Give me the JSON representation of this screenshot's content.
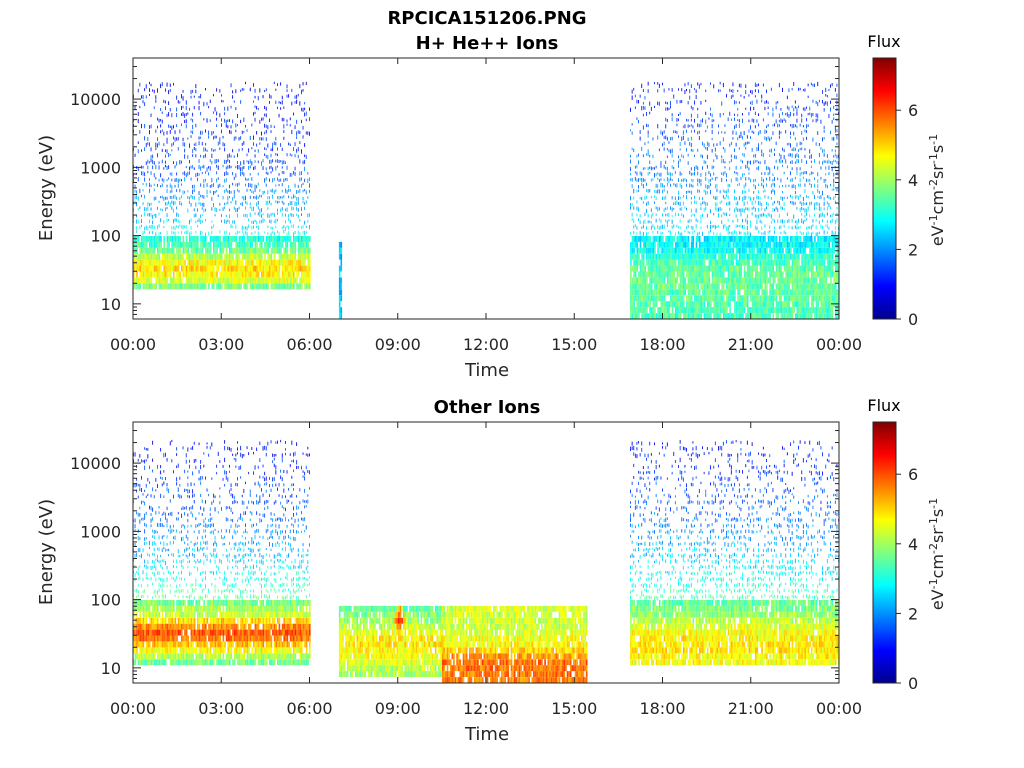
{
  "chart_data": [
    {
      "type": "heatmap",
      "title": "RPCICA151206.PNG",
      "subtitle": "H+ He++ Ions",
      "xlabel": "Time",
      "ylabel": "Energy (eV)",
      "xticks": [
        "00:00",
        "03:00",
        "06:00",
        "09:00",
        "12:00",
        "15:00",
        "18:00",
        "21:00",
        "00:00"
      ],
      "xlim": [
        "00:00",
        "24:00"
      ],
      "yscale": "log",
      "yticks": [
        10,
        100,
        1000,
        10000
      ],
      "ytick_labels": [
        "10",
        "100",
        "1000",
        "10000"
      ],
      "ylim": [
        6,
        40000
      ],
      "colorbar": {
        "title": "Flux",
        "label": "eV-1cm-2sr-1s-1",
        "ticks": [
          0,
          2,
          4,
          6
        ],
        "range": [
          0,
          7.5
        ],
        "colormap": "jet"
      },
      "data_blocks": [
        {
          "start_hour": 0.0,
          "end_hour": 6.0,
          "energy_min": 16,
          "energy_max": 18000,
          "profile": [
            [
              16,
              3.2
            ],
            [
              20,
              4.2
            ],
            [
              25,
              4.7
            ],
            [
              35,
              5.0
            ],
            [
              45,
              4.4
            ],
            [
              60,
              3.6
            ],
            [
              100,
              2.9
            ],
            [
              200,
              2.3
            ],
            [
              400,
              2.0
            ],
            [
              1000,
              1.5
            ],
            [
              3000,
              1.3
            ],
            [
              8000,
              1.1
            ],
            [
              18000,
              0.9
            ]
          ]
        },
        {
          "start_hour": 7.0,
          "end_hour": 7.1,
          "energy_min": 6,
          "energy_max": 80,
          "profile": [
            [
              6,
              2.5
            ],
            [
              80,
              2.3
            ]
          ]
        },
        {
          "start_hour": 16.9,
          "end_hour": 24.0,
          "energy_min": 6,
          "energy_max": 18000,
          "profile": [
            [
              6,
              3.3
            ],
            [
              20,
              3.6
            ],
            [
              35,
              3.5
            ],
            [
              60,
              2.9
            ],
            [
              150,
              2.5
            ],
            [
              400,
              2.2
            ],
            [
              1000,
              1.9
            ],
            [
              3000,
              1.6
            ],
            [
              8000,
              1.3
            ],
            [
              18000,
              1.1
            ]
          ]
        }
      ]
    },
    {
      "type": "heatmap",
      "title": "Other Ions",
      "xlabel": "Time",
      "ylabel": "Energy (eV)",
      "xticks": [
        "00:00",
        "03:00",
        "06:00",
        "09:00",
        "12:00",
        "15:00",
        "18:00",
        "21:00",
        "00:00"
      ],
      "xlim": [
        "00:00",
        "24:00"
      ],
      "yscale": "log",
      "yticks": [
        10,
        100,
        1000,
        10000
      ],
      "ytick_labels": [
        "10",
        "100",
        "1000",
        "10000"
      ],
      "ylim": [
        6,
        40000
      ],
      "colorbar": {
        "title": "Flux",
        "label": "eV-1cm-2sr-1s-1",
        "ticks": [
          0,
          2,
          4,
          6
        ],
        "range": [
          0,
          7.5
        ],
        "colormap": "jet"
      },
      "data_blocks": [
        {
          "start_hour": 0.0,
          "end_hour": 6.0,
          "energy_min": 12,
          "energy_max": 20000,
          "profile": [
            [
              12,
              3.6
            ],
            [
              18,
              4.6
            ],
            [
              25,
              5.6
            ],
            [
              35,
              6.0
            ],
            [
              45,
              5.2
            ],
            [
              60,
              4.3
            ],
            [
              100,
              3.6
            ],
            [
              200,
              3.0
            ],
            [
              400,
              2.4
            ],
            [
              1000,
              2.0
            ],
            [
              3000,
              1.5
            ],
            [
              8000,
              1.3
            ],
            [
              20000,
              1.0
            ]
          ]
        },
        {
          "start_hour": 7.0,
          "end_hour": 10.5,
          "energy_min": 7,
          "energy_max": 80,
          "profile": [
            [
              7,
              3.9
            ],
            [
              15,
              4.6
            ],
            [
              25,
              4.9
            ],
            [
              40,
              4.2
            ],
            [
              80,
              3.4
            ]
          ]
        },
        {
          "start_hour": 10.5,
          "end_hour": 15.4,
          "energy_min": 6,
          "energy_max": 80,
          "profile": [
            [
              6,
              5.6
            ],
            [
              12,
              5.8
            ],
            [
              20,
              4.8
            ],
            [
              40,
              4.3
            ],
            [
              80,
              4.4
            ]
          ]
        },
        {
          "start_hour": 16.9,
          "end_hour": 24.0,
          "energy_min": 12,
          "energy_max": 20000,
          "profile": [
            [
              12,
              4.6
            ],
            [
              20,
              4.9
            ],
            [
              35,
              4.6
            ],
            [
              60,
              3.9
            ],
            [
              150,
              3.1
            ],
            [
              400,
              2.5
            ],
            [
              1000,
              2.0
            ],
            [
              3000,
              1.6
            ],
            [
              8000,
              1.3
            ],
            [
              20000,
              1.1
            ]
          ]
        }
      ],
      "hotspots": [
        {
          "hour": 9.05,
          "energy": 50,
          "value": 6.6
        },
        {
          "hour": 12.3,
          "energy": 13,
          "value": 6.2
        }
      ]
    }
  ]
}
